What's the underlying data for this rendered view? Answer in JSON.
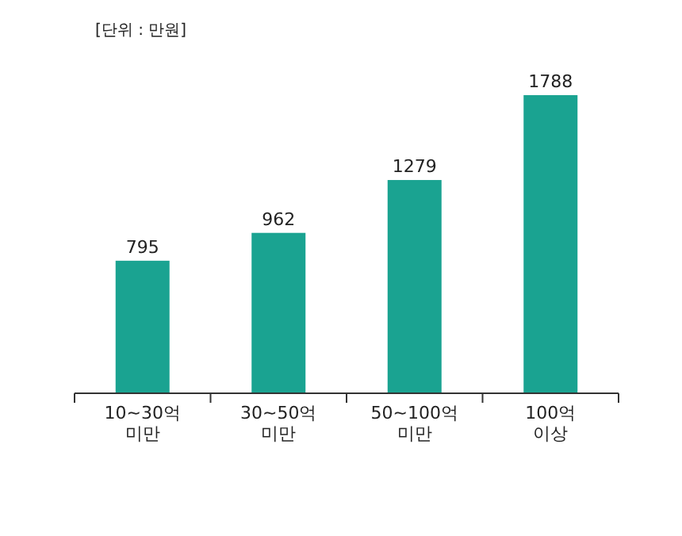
{
  "chart_data": {
    "type": "bar",
    "categories": [
      "10~30억\n미만",
      "30~50억\n미만",
      "50~100억\n미만",
      "100억\n이상"
    ],
    "values": [
      795,
      962,
      1279,
      1788
    ],
    "color": "#1aa391",
    "data_labels": true,
    "annotations": [
      "[단위 : 만원]"
    ]
  }
}
